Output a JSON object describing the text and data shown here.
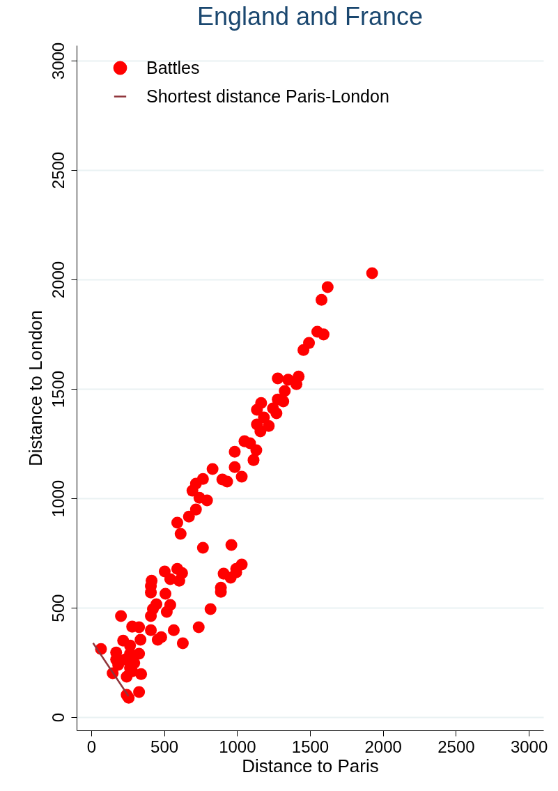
{
  "chart_data": {
    "type": "scatter",
    "title": "England and France",
    "xlabel": "Distance to Paris",
    "ylabel": "Distance to London",
    "xlim": [
      -100,
      3100
    ],
    "ylim": [
      -60,
      3070
    ],
    "xticks": [
      0,
      500,
      1000,
      1500,
      2000,
      2500,
      3000
    ],
    "yticks": [
      0,
      500,
      1000,
      1500,
      2000,
      2500,
      3000
    ],
    "grid": "y",
    "legend": "top left",
    "series": [
      {
        "name": "Battles",
        "marker": "circle",
        "color": "#ff0000",
        "x": [
          1926,
          1621,
          1579,
          1550,
          1593,
          1493,
          1455,
          1279,
          1350,
          1422,
          1407,
          1327,
          1279,
          1317,
          1246,
          1270,
          1165,
          1136,
          1184,
          1136,
          1217,
          1160,
          1051,
          1089,
          1132,
          984,
          1113,
          984,
          1032,
          832,
          899,
          932,
          766,
          718,
          694,
          742,
          794,
          718,
          670,
          590,
          613,
          766,
          961,
          504,
          590,
          623,
          542,
          604,
          414,
          409,
          409,
          509,
          447,
          423,
          542,
          518,
          409,
          204,
          281,
          328,
          409,
          566,
          737,
          818,
          628,
          456,
          480,
          219,
          266,
          338,
          67,
          171,
          266,
          328,
          171,
          233,
          295,
          185,
          266,
          147,
          243,
          342,
          281,
          328,
          257,
          243,
          889,
          889,
          908,
          956,
          994,
          1032,
          994
        ],
        "values": [
          2029,
          1965,
          1907,
          1761,
          1749,
          1710,
          1678,
          1548,
          1542,
          1557,
          1522,
          1491,
          1452,
          1443,
          1411,
          1389,
          1436,
          1405,
          1370,
          1338,
          1331,
          1306,
          1261,
          1252,
          1220,
          1213,
          1175,
          1143,
          1099,
          1134,
          1086,
          1077,
          1089,
          1067,
          1035,
          1003,
          991,
          949,
          917,
          889,
          838,
          774,
          787,
          666,
          678,
          659,
          631,
          624,
          624,
          599,
          570,
          564,
          516,
          494,
          513,
          481,
          462,
          462,
          414,
          411,
          398,
          398,
          411,
          494,
          338,
          354,
          366,
          350,
          328,
          354,
          312,
          296,
          290,
          290,
          264,
          264,
          248,
          239,
          226,
          201,
          185,
          197,
          210,
          115,
          89,
          102,
          573,
          592,
          656,
          637,
          662,
          698,
          678
        ]
      },
      {
        "name": "Shortest distance Paris-London",
        "type": "line",
        "color": "#90353b",
        "x": [
          13,
          256
        ],
        "values": [
          339,
          96
        ]
      }
    ]
  }
}
